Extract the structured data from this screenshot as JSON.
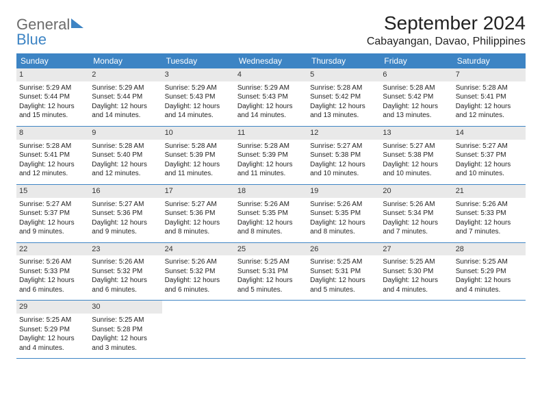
{
  "logo": {
    "general": "General",
    "blue": "Blue"
  },
  "title": "September 2024",
  "location": "Cabayangan, Davao, Philippines",
  "colors": {
    "header_bg": "#3d84c4",
    "daynum_bg": "#e9e9e9",
    "row_border": "#3d84c4",
    "text": "#222222"
  },
  "dayNames": [
    "Sunday",
    "Monday",
    "Tuesday",
    "Wednesday",
    "Thursday",
    "Friday",
    "Saturday"
  ],
  "weeks": [
    [
      {
        "n": "1",
        "sr": "Sunrise: 5:29 AM",
        "ss": "Sunset: 5:44 PM",
        "d1": "Daylight: 12 hours",
        "d2": "and 15 minutes."
      },
      {
        "n": "2",
        "sr": "Sunrise: 5:29 AM",
        "ss": "Sunset: 5:44 PM",
        "d1": "Daylight: 12 hours",
        "d2": "and 14 minutes."
      },
      {
        "n": "3",
        "sr": "Sunrise: 5:29 AM",
        "ss": "Sunset: 5:43 PM",
        "d1": "Daylight: 12 hours",
        "d2": "and 14 minutes."
      },
      {
        "n": "4",
        "sr": "Sunrise: 5:29 AM",
        "ss": "Sunset: 5:43 PM",
        "d1": "Daylight: 12 hours",
        "d2": "and 14 minutes."
      },
      {
        "n": "5",
        "sr": "Sunrise: 5:28 AM",
        "ss": "Sunset: 5:42 PM",
        "d1": "Daylight: 12 hours",
        "d2": "and 13 minutes."
      },
      {
        "n": "6",
        "sr": "Sunrise: 5:28 AM",
        "ss": "Sunset: 5:42 PM",
        "d1": "Daylight: 12 hours",
        "d2": "and 13 minutes."
      },
      {
        "n": "7",
        "sr": "Sunrise: 5:28 AM",
        "ss": "Sunset: 5:41 PM",
        "d1": "Daylight: 12 hours",
        "d2": "and 12 minutes."
      }
    ],
    [
      {
        "n": "8",
        "sr": "Sunrise: 5:28 AM",
        "ss": "Sunset: 5:41 PM",
        "d1": "Daylight: 12 hours",
        "d2": "and 12 minutes."
      },
      {
        "n": "9",
        "sr": "Sunrise: 5:28 AM",
        "ss": "Sunset: 5:40 PM",
        "d1": "Daylight: 12 hours",
        "d2": "and 12 minutes."
      },
      {
        "n": "10",
        "sr": "Sunrise: 5:28 AM",
        "ss": "Sunset: 5:39 PM",
        "d1": "Daylight: 12 hours",
        "d2": "and 11 minutes."
      },
      {
        "n": "11",
        "sr": "Sunrise: 5:28 AM",
        "ss": "Sunset: 5:39 PM",
        "d1": "Daylight: 12 hours",
        "d2": "and 11 minutes."
      },
      {
        "n": "12",
        "sr": "Sunrise: 5:27 AM",
        "ss": "Sunset: 5:38 PM",
        "d1": "Daylight: 12 hours",
        "d2": "and 10 minutes."
      },
      {
        "n": "13",
        "sr": "Sunrise: 5:27 AM",
        "ss": "Sunset: 5:38 PM",
        "d1": "Daylight: 12 hours",
        "d2": "and 10 minutes."
      },
      {
        "n": "14",
        "sr": "Sunrise: 5:27 AM",
        "ss": "Sunset: 5:37 PM",
        "d1": "Daylight: 12 hours",
        "d2": "and 10 minutes."
      }
    ],
    [
      {
        "n": "15",
        "sr": "Sunrise: 5:27 AM",
        "ss": "Sunset: 5:37 PM",
        "d1": "Daylight: 12 hours",
        "d2": "and 9 minutes."
      },
      {
        "n": "16",
        "sr": "Sunrise: 5:27 AM",
        "ss": "Sunset: 5:36 PM",
        "d1": "Daylight: 12 hours",
        "d2": "and 9 minutes."
      },
      {
        "n": "17",
        "sr": "Sunrise: 5:27 AM",
        "ss": "Sunset: 5:36 PM",
        "d1": "Daylight: 12 hours",
        "d2": "and 8 minutes."
      },
      {
        "n": "18",
        "sr": "Sunrise: 5:26 AM",
        "ss": "Sunset: 5:35 PM",
        "d1": "Daylight: 12 hours",
        "d2": "and 8 minutes."
      },
      {
        "n": "19",
        "sr": "Sunrise: 5:26 AM",
        "ss": "Sunset: 5:35 PM",
        "d1": "Daylight: 12 hours",
        "d2": "and 8 minutes."
      },
      {
        "n": "20",
        "sr": "Sunrise: 5:26 AM",
        "ss": "Sunset: 5:34 PM",
        "d1": "Daylight: 12 hours",
        "d2": "and 7 minutes."
      },
      {
        "n": "21",
        "sr": "Sunrise: 5:26 AM",
        "ss": "Sunset: 5:33 PM",
        "d1": "Daylight: 12 hours",
        "d2": "and 7 minutes."
      }
    ],
    [
      {
        "n": "22",
        "sr": "Sunrise: 5:26 AM",
        "ss": "Sunset: 5:33 PM",
        "d1": "Daylight: 12 hours",
        "d2": "and 6 minutes."
      },
      {
        "n": "23",
        "sr": "Sunrise: 5:26 AM",
        "ss": "Sunset: 5:32 PM",
        "d1": "Daylight: 12 hours",
        "d2": "and 6 minutes."
      },
      {
        "n": "24",
        "sr": "Sunrise: 5:26 AM",
        "ss": "Sunset: 5:32 PM",
        "d1": "Daylight: 12 hours",
        "d2": "and 6 minutes."
      },
      {
        "n": "25",
        "sr": "Sunrise: 5:25 AM",
        "ss": "Sunset: 5:31 PM",
        "d1": "Daylight: 12 hours",
        "d2": "and 5 minutes."
      },
      {
        "n": "26",
        "sr": "Sunrise: 5:25 AM",
        "ss": "Sunset: 5:31 PM",
        "d1": "Daylight: 12 hours",
        "d2": "and 5 minutes."
      },
      {
        "n": "27",
        "sr": "Sunrise: 5:25 AM",
        "ss": "Sunset: 5:30 PM",
        "d1": "Daylight: 12 hours",
        "d2": "and 4 minutes."
      },
      {
        "n": "28",
        "sr": "Sunrise: 5:25 AM",
        "ss": "Sunset: 5:29 PM",
        "d1": "Daylight: 12 hours",
        "d2": "and 4 minutes."
      }
    ],
    [
      {
        "n": "29",
        "sr": "Sunrise: 5:25 AM",
        "ss": "Sunset: 5:29 PM",
        "d1": "Daylight: 12 hours",
        "d2": "and 4 minutes."
      },
      {
        "n": "30",
        "sr": "Sunrise: 5:25 AM",
        "ss": "Sunset: 5:28 PM",
        "d1": "Daylight: 12 hours",
        "d2": "and 3 minutes."
      },
      null,
      null,
      null,
      null,
      null
    ]
  ]
}
